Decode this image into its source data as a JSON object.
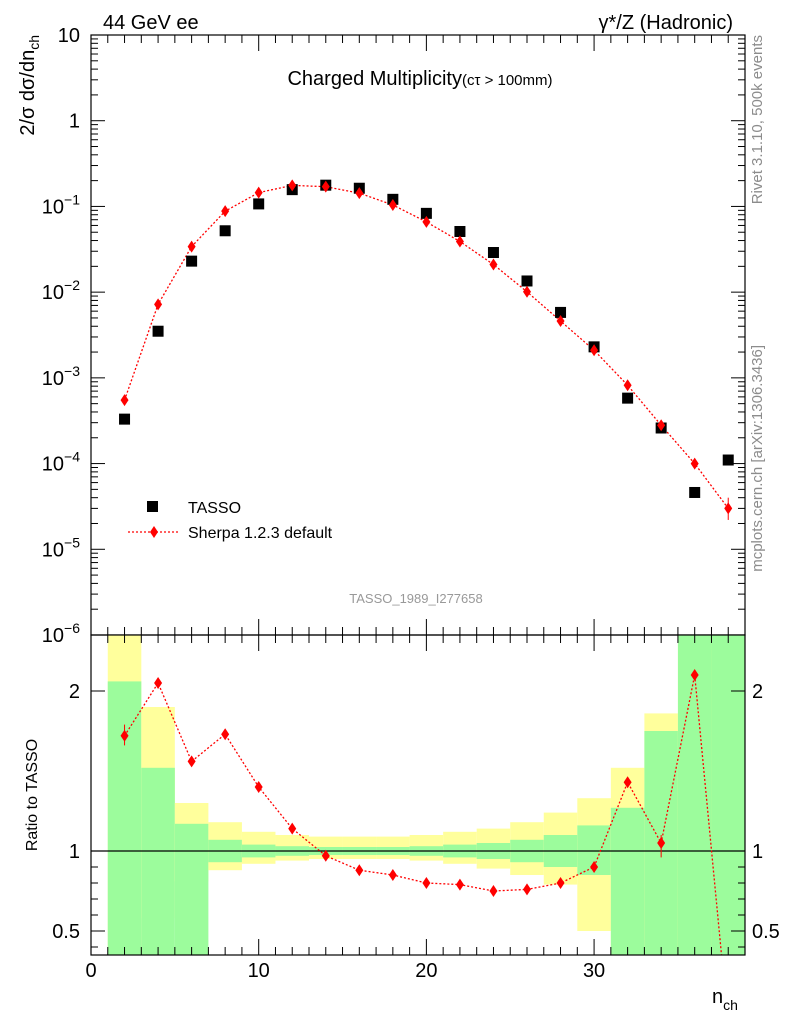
{
  "header": {
    "left": "44 GeV ee",
    "right": "γ*/Z (Hadronic)"
  },
  "side_labels": {
    "top": "Rivet 3.1.10,  500k events",
    "bottom": "mcplots.cern.ch [arXiv:1306.3436]"
  },
  "chart_data": [
    {
      "type": "scatter",
      "title_main": "Charged Multiplicity",
      "title_sub": "(cτ > 100mm)",
      "watermark": "TASSO_1989_I277658",
      "ylabel": "2/σ dσ/dn",
      "ylabel_sub": "ch",
      "xlim": [
        0,
        39
      ],
      "ylim": [
        1e-06,
        10
      ],
      "yscale": "log",
      "ytick_labels": [
        {
          "base": "10",
          "exp": "−6"
        },
        {
          "base": "10",
          "exp": "−5"
        },
        {
          "base": "10",
          "exp": "−4"
        },
        {
          "base": "10",
          "exp": "−3"
        },
        {
          "base": "10",
          "exp": "−2"
        },
        {
          "base": "10",
          "exp": "−1"
        },
        {
          "base": "1",
          "exp": ""
        },
        {
          "base": "10",
          "exp": ""
        }
      ],
      "legend": {
        "placement": "lower-left",
        "entries": [
          "TASSO",
          "Sherpa 1.2.3 default"
        ]
      },
      "series": [
        {
          "name": "TASSO",
          "marker": "square",
          "color": "#000000",
          "x": [
            2,
            4,
            6,
            8,
            10,
            12,
            14,
            16,
            18,
            20,
            22,
            24,
            26,
            28,
            30,
            32,
            34,
            36,
            38
          ],
          "y": [
            0.00033,
            0.0035,
            0.023,
            0.052,
            0.107,
            0.157,
            0.177,
            0.163,
            0.121,
            0.083,
            0.051,
            0.029,
            0.0135,
            0.0058,
            0.0023,
            0.00058,
            0.00026,
            4.6e-05,
            0.00011
          ]
        },
        {
          "name": "Sherpa 1.2.3 default",
          "marker": "diamond",
          "color": "#ff0000",
          "x": [
            2,
            4,
            6,
            8,
            10,
            12,
            14,
            16,
            18,
            20,
            22,
            24,
            26,
            28,
            30,
            32,
            34,
            36,
            38
          ],
          "y": [
            0.00055,
            0.0072,
            0.034,
            0.088,
            0.145,
            0.176,
            0.17,
            0.143,
            0.104,
            0.066,
            0.039,
            0.021,
            0.0101,
            0.0046,
            0.0021,
            0.00082,
            0.00028,
            0.0001,
            3e-05
          ]
        }
      ]
    },
    {
      "type": "line",
      "ylabel": "Ratio to TASSO",
      "xlabel": "n",
      "xlabel_sub": "ch",
      "xlim": [
        0,
        39
      ],
      "ylim": [
        0.35,
        2.35
      ],
      "xticks": [
        "0",
        "10",
        "20",
        "30"
      ],
      "yticks": [
        "0.5",
        "1",
        "2"
      ],
      "bands": {
        "edges": [
          1,
          3,
          5,
          7,
          9,
          11,
          13,
          15,
          17,
          19,
          21,
          23,
          25,
          27,
          29,
          31,
          33,
          35,
          37,
          39
        ],
        "inner_low": [
          0.35,
          0.35,
          0.35,
          0.93,
          0.96,
          0.97,
          0.975,
          0.975,
          0.975,
          0.97,
          0.96,
          0.95,
          0.93,
          0.9,
          0.85,
          0.35,
          0.35,
          0.35,
          0.35
        ],
        "inner_high": [
          2.06,
          1.52,
          1.17,
          1.07,
          1.04,
          1.03,
          1.025,
          1.025,
          1.025,
          1.03,
          1.04,
          1.05,
          1.07,
          1.1,
          1.16,
          1.27,
          1.75,
          2.35,
          2.35
        ],
        "outer_low": [
          0.35,
          0.58,
          0.81,
          0.88,
          0.92,
          0.94,
          0.95,
          0.95,
          0.95,
          0.94,
          0.92,
          0.89,
          0.85,
          0.79,
          0.5,
          0.35,
          0.35,
          0.35,
          0.35
        ],
        "outer_high": [
          2.35,
          1.9,
          1.3,
          1.18,
          1.12,
          1.1,
          1.09,
          1.09,
          1.09,
          1.1,
          1.12,
          1.14,
          1.18,
          1.24,
          1.33,
          1.52,
          1.86,
          2.35,
          2.35
        ],
        "inner_color": "#9cfc9c",
        "outer_color": "#ffff9c"
      },
      "series": [
        {
          "name": "Sherpa 1.2.3 default",
          "color": "#ff0000",
          "x": [
            2,
            4,
            6,
            8,
            10,
            12,
            14,
            16,
            18,
            20,
            22,
            24,
            26,
            28,
            30,
            32,
            34,
            36
          ],
          "y": [
            1.72,
            2.05,
            1.56,
            1.73,
            1.4,
            1.14,
            0.97,
            0.88,
            0.85,
            0.8,
            0.79,
            0.75,
            0.76,
            0.8,
            0.9,
            1.43,
            1.05,
            2.1
          ]
        }
      ]
    }
  ]
}
